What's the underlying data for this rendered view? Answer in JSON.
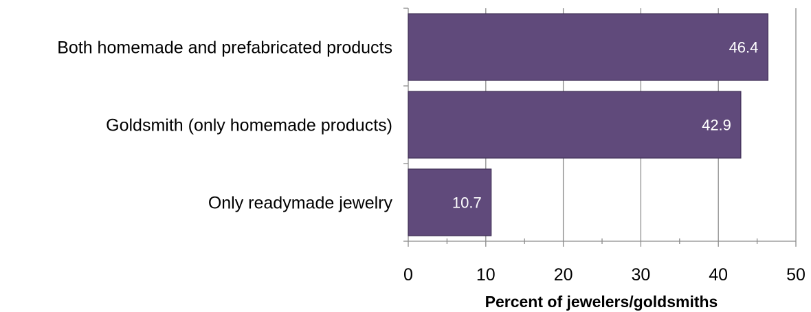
{
  "chart_data": {
    "type": "bar",
    "orientation": "horizontal",
    "categories": [
      "Both homemade and prefabricated products",
      "Goldsmith (only homemade products)",
      "Only readymade jewelry"
    ],
    "values": [
      46.4,
      42.9,
      10.7
    ],
    "data_labels": [
      "46.4",
      "42.9",
      "10.7"
    ],
    "xlabel": "Percent of jewelers/goldsmiths",
    "xlim": [
      0,
      50
    ],
    "xticks": [
      0,
      10,
      20,
      30,
      40,
      50
    ],
    "xtick_labels": [
      "0",
      "10",
      "20",
      "30",
      "40",
      "50"
    ],
    "grid": "vertical",
    "legend": "none",
    "bar_color": "#604a7b",
    "bar_edge_color": "#3f2f56",
    "grid_color": "#8c8c8c"
  }
}
